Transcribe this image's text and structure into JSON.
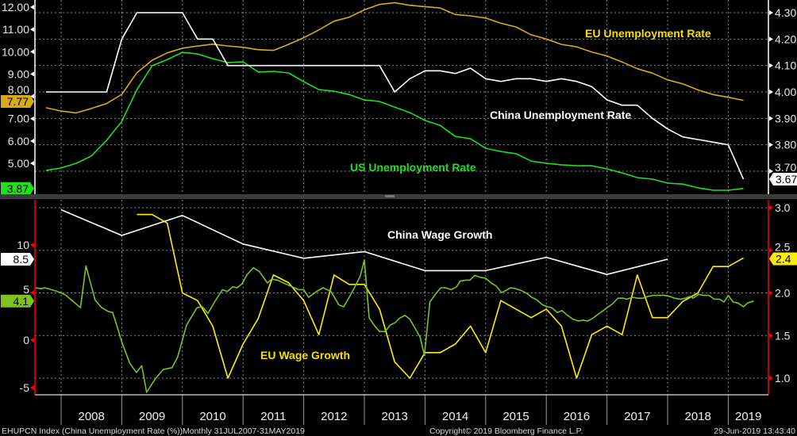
{
  "chart_data": {
    "type": "line",
    "x_axis": {
      "range": [
        2007.55,
        2019.45
      ],
      "year_labels": [
        "2008",
        "2009",
        "2010",
        "2011",
        "2012",
        "2013",
        "2014",
        "2015",
        "2016",
        "2017",
        "2018",
        "2019"
      ],
      "year_starts": [
        2008,
        2009,
        2010,
        2011,
        2012,
        2013,
        2014,
        2015,
        2016,
        2017,
        2018,
        2019
      ]
    },
    "panels": [
      {
        "id": "top",
        "left_axis": {
          "range": [
            3.5,
            12.3
          ],
          "ticks": [
            12,
            11,
            10,
            9,
            8,
            7,
            6,
            5
          ],
          "labels": [
            "12.00",
            "11.00",
            "10.00",
            "9.00",
            "8.00",
            "7.00",
            "6.00",
            "5.00"
          ],
          "color": "#ffffff"
        },
        "right_axis": {
          "range": [
            3.61,
            4.34
          ],
          "ticks": [
            4.3,
            4.2,
            4.1,
            4.0,
            3.9,
            3.8,
            3.7
          ],
          "labels": [
            "4.30",
            "4.20",
            "4.10",
            "4.00",
            "3.90",
            "3.80",
            "3.70"
          ],
          "color": "#ffffff"
        },
        "series": [
          {
            "key": "eu_unemp",
            "name": "EU Unemployment Rate",
            "axis": "left",
            "color": "#d9a91c",
            "start": 2007.75,
            "step": 0.25,
            "values": [
              7.49,
              7.34,
              7.26,
              7.46,
              7.68,
              8.09,
              9.06,
              9.62,
              9.95,
              10.16,
              10.26,
              10.34,
              10.26,
              10.2,
              10.09,
              10.06,
              10.33,
              10.63,
              10.98,
              11.37,
              11.55,
              11.88,
              12.12,
              12.2,
              12.08,
              12.02,
              11.96,
              11.67,
              11.61,
              11.51,
              11.28,
              11.11,
              10.76,
              10.57,
              10.33,
              10.22,
              9.99,
              9.81,
              9.54,
              9.24,
              9.04,
              8.74,
              8.56,
              8.29,
              8.08,
              7.96,
              7.82
            ],
            "tag": "7.77"
          },
          {
            "key": "us_unemp",
            "name": "US Unemployment Rate",
            "axis": "left",
            "color": "#1fe01f",
            "start": 2007.75,
            "step": 0.25,
            "values": [
              4.68,
              4.79,
              5.0,
              5.33,
              6.03,
              6.88,
              8.3,
              9.37,
              9.65,
              9.97,
              9.9,
              9.69,
              9.51,
              9.55,
              9.09,
              9.12,
              9.05,
              8.66,
              8.3,
              8.23,
              8.08,
              7.84,
              7.77,
              7.52,
              7.27,
              6.92,
              6.7,
              6.2,
              6.1,
              5.67,
              5.53,
              5.43,
              5.1,
              5.0,
              4.93,
              4.89,
              4.89,
              4.75,
              4.57,
              4.36,
              4.29,
              4.11,
              4.07,
              3.9,
              3.79,
              3.79,
              3.87
            ],
            "tag": "3.87"
          },
          {
            "key": "china_unemp",
            "name": "China Unemployment Rate",
            "axis": "right",
            "color": "#ffffff",
            "start": 2007.75,
            "step": 0.25,
            "values": [
              4.0,
              4.0,
              4.0,
              4.0,
              4.0,
              4.2,
              4.3,
              4.3,
              4.3,
              4.3,
              4.2,
              4.2,
              4.1,
              4.1,
              4.1,
              4.1,
              4.1,
              4.1,
              4.1,
              4.1,
              4.1,
              4.1,
              4.1,
              4.0,
              4.05,
              4.08,
              4.08,
              4.07,
              4.09,
              4.05,
              4.04,
              4.05,
              4.05,
              4.04,
              4.05,
              4.04,
              4.02,
              3.97,
              3.95,
              3.95,
              3.9,
              3.86,
              3.83,
              3.82,
              3.81,
              3.8,
              3.67
            ],
            "tag": "3.67"
          }
        ]
      },
      {
        "id": "bottom",
        "left_axis": {
          "range": [
            -5.5,
            15.5
          ],
          "ticks": [
            10,
            5,
            0,
            -5
          ],
          "labels": [
            "10",
            "5",
            "0",
            "-5"
          ],
          "color": "#ff0000"
        },
        "right_axis": {
          "range": [
            0.85,
            3.1
          ],
          "ticks": [
            3.0,
            2.5,
            2.0,
            1.5,
            1.0
          ],
          "labels": [
            "3.0",
            "2.5",
            "2.0",
            "1.5",
            "1.0"
          ],
          "color": "#ff0000"
        },
        "series": [
          {
            "key": "china_wage",
            "name": "China Wage Growth",
            "axis": "left",
            "color": "#ffffff",
            "start": 2008,
            "step": 1,
            "values": [
              13.7,
              11.0,
              13.1,
              10.1,
              8.6,
              9.3,
              7.3,
              7.3,
              8.7,
              6.9,
              8.5
            ],
            "tag": "8.5"
          },
          {
            "key": "eu_wage",
            "name": "EU Wage Growth",
            "axis": "right",
            "color": "#ffee00",
            "start": 2009.25,
            "step": 0.25,
            "values": [
              2.92,
              2.92,
              2.82,
              2.0,
              1.91,
              1.61,
              1.0,
              1.4,
              1.7,
              2.21,
              2.12,
              1.91,
              1.51,
              2.21,
              2.1,
              2.1,
              1.81,
              1.19,
              1.0,
              1.3,
              1.3,
              1.4,
              1.61,
              1.3,
              1.91,
              1.81,
              1.71,
              1.81,
              1.61,
              1.0,
              1.51,
              1.61,
              1.51,
              2.21,
              1.71,
              1.71,
              1.9,
              2.0,
              2.31,
              2.31,
              2.41
            ],
            "tag": "2.4"
          },
          {
            "key": "green_series",
            "axis": "left",
            "color": "#7cc41c",
            "points": [
              [
                2007.58,
                5.5
              ],
              [
                2007.67,
                5.4
              ],
              [
                2007.73,
                5.5
              ],
              [
                2007.84,
                5.3
              ],
              [
                2007.99,
                5.0
              ],
              [
                2008.08,
                4.7
              ],
              [
                2008.21,
                4.0
              ],
              [
                2008.32,
                3.4
              ],
              [
                2008.41,
                7.8
              ],
              [
                2008.56,
                4.2
              ],
              [
                2008.67,
                3.4
              ],
              [
                2008.78,
                3.0
              ],
              [
                2008.85,
                2.9
              ],
              [
                2008.91,
                1.7
              ],
              [
                2009.0,
                -0.2
              ],
              [
                2009.13,
                -2.4
              ],
              [
                2009.24,
                -3.4
              ],
              [
                2009.33,
                -2.7
              ],
              [
                2009.41,
                -5.5
              ],
              [
                2009.55,
                -4.1
              ],
              [
                2009.68,
                -3.1
              ],
              [
                2009.83,
                -2.9
              ],
              [
                2009.92,
                -1.8
              ],
              [
                2010.07,
                1.6
              ],
              [
                2010.24,
                3.4
              ],
              [
                2010.33,
                3.5
              ],
              [
                2010.42,
                2.8
              ],
              [
                2010.53,
                4.0
              ],
              [
                2010.66,
                5.3
              ],
              [
                2010.74,
                5.1
              ],
              [
                2010.83,
                5.6
              ],
              [
                2010.9,
                5.5
              ],
              [
                2010.98,
                5.9
              ],
              [
                2011.07,
                6.9
              ],
              [
                2011.17,
                7.6
              ],
              [
                2011.27,
                7.2
              ],
              [
                2011.4,
                6.0
              ],
              [
                2011.47,
                6.4
              ],
              [
                2011.57,
                6.3
              ],
              [
                2011.7,
                5.9
              ],
              [
                2011.81,
                5.6
              ],
              [
                2011.92,
                5.3
              ],
              [
                2012.0,
                5.3
              ],
              [
                2012.08,
                4.5
              ],
              [
                2012.21,
                5.1
              ],
              [
                2012.32,
                5.5
              ],
              [
                2012.45,
                5.1
              ],
              [
                2012.58,
                3.7
              ],
              [
                2012.66,
                3.5
              ],
              [
                2012.82,
                5.3
              ],
              [
                2012.93,
                6.7
              ],
              [
                2013.0,
                8.4
              ],
              [
                2013.08,
                2.3
              ],
              [
                2013.17,
                1.5
              ],
              [
                2013.25,
                0.9
              ],
              [
                2013.34,
                0.9
              ],
              [
                2013.43,
                1.6
              ],
              [
                2013.5,
                1.8
              ],
              [
                2013.58,
                2.3
              ],
              [
                2013.67,
                2.6
              ],
              [
                2013.75,
                2.2
              ],
              [
                2013.84,
                1.2
              ],
              [
                2013.92,
                0.3
              ],
              [
                2013.99,
                -1.6
              ],
              [
                2014.08,
                4.0
              ],
              [
                2014.17,
                4.8
              ],
              [
                2014.26,
                5.5
              ],
              [
                2014.34,
                5.5
              ],
              [
                2014.43,
                5.3
              ],
              [
                2014.52,
                5.6
              ],
              [
                2014.58,
                6.2
              ],
              [
                2014.67,
                6.3
              ],
              [
                2014.74,
                6.3
              ],
              [
                2014.82,
                6.8
              ],
              [
                2014.91,
                6.6
              ],
              [
                2015.0,
                6.5
              ],
              [
                2015.09,
                6.0
              ],
              [
                2015.17,
                5.7
              ],
              [
                2015.26,
                5.0
              ],
              [
                2015.33,
                5.2
              ],
              [
                2015.41,
                5.5
              ],
              [
                2015.5,
                5.4
              ],
              [
                2015.59,
                5.2
              ],
              [
                2015.68,
                4.9
              ],
              [
                2015.76,
                4.5
              ],
              [
                2015.85,
                4.2
              ],
              [
                2015.94,
                3.7
              ],
              [
                2016.02,
                3.5
              ],
              [
                2016.09,
                3.4
              ],
              [
                2016.18,
                2.9
              ],
              [
                2016.26,
                3.1
              ],
              [
                2016.35,
                2.6
              ],
              [
                2016.44,
                2.2
              ],
              [
                2016.53,
                2.0
              ],
              [
                2016.61,
                2.1
              ],
              [
                2016.68,
                2.0
              ],
              [
                2016.77,
                2.3
              ],
              [
                2016.85,
                2.7
              ],
              [
                2016.94,
                3.1
              ],
              [
                2017.0,
                3.4
              ],
              [
                2017.09,
                3.8
              ],
              [
                2017.18,
                4.4
              ],
              [
                2017.27,
                4.4
              ],
              [
                2017.33,
                4.3
              ],
              [
                2017.42,
                4.5
              ],
              [
                2017.51,
                4.4
              ],
              [
                2017.59,
                4.4
              ],
              [
                2017.68,
                4.6
              ],
              [
                2017.77,
                4.7
              ],
              [
                2017.86,
                4.7
              ],
              [
                2017.94,
                4.7
              ],
              [
                2018.03,
                4.6
              ],
              [
                2018.12,
                4.4
              ],
              [
                2018.21,
                4.3
              ],
              [
                2018.29,
                4.4
              ],
              [
                2018.38,
                4.6
              ],
              [
                2018.42,
                4.4
              ],
              [
                2018.51,
                4.8
              ],
              [
                2018.6,
                4.7
              ],
              [
                2018.68,
                4.7
              ],
              [
                2018.77,
                4.3
              ],
              [
                2018.86,
                4.3
              ],
              [
                2018.93,
                4.0
              ],
              [
                2019.0,
                4.7
              ],
              [
                2019.08,
                4.0
              ],
              [
                2019.16,
                3.9
              ],
              [
                2019.25,
                3.5
              ],
              [
                2019.32,
                3.9
              ],
              [
                2019.42,
                4.1
              ]
            ],
            "tag": "4.1"
          }
        ]
      }
    ],
    "annotations": {
      "eu_unemp": "EU Unemployment Rate",
      "china_unemp": "China Unemployment Rate",
      "us_unemp": "US Unemployment Rate",
      "china_wage": "China Wage Growth",
      "eu_wage": "EU Wage Growth"
    }
  },
  "footer": {
    "ticker": "EHUPCN Index (China Unemployment Rate (%))",
    "period": "Monthly 31JUL2007-31MAY2019",
    "copyright": "Copyright© 2019 Bloomberg Finance L.P.",
    "timestamp": "29-Jun-2019 13:43:40"
  }
}
